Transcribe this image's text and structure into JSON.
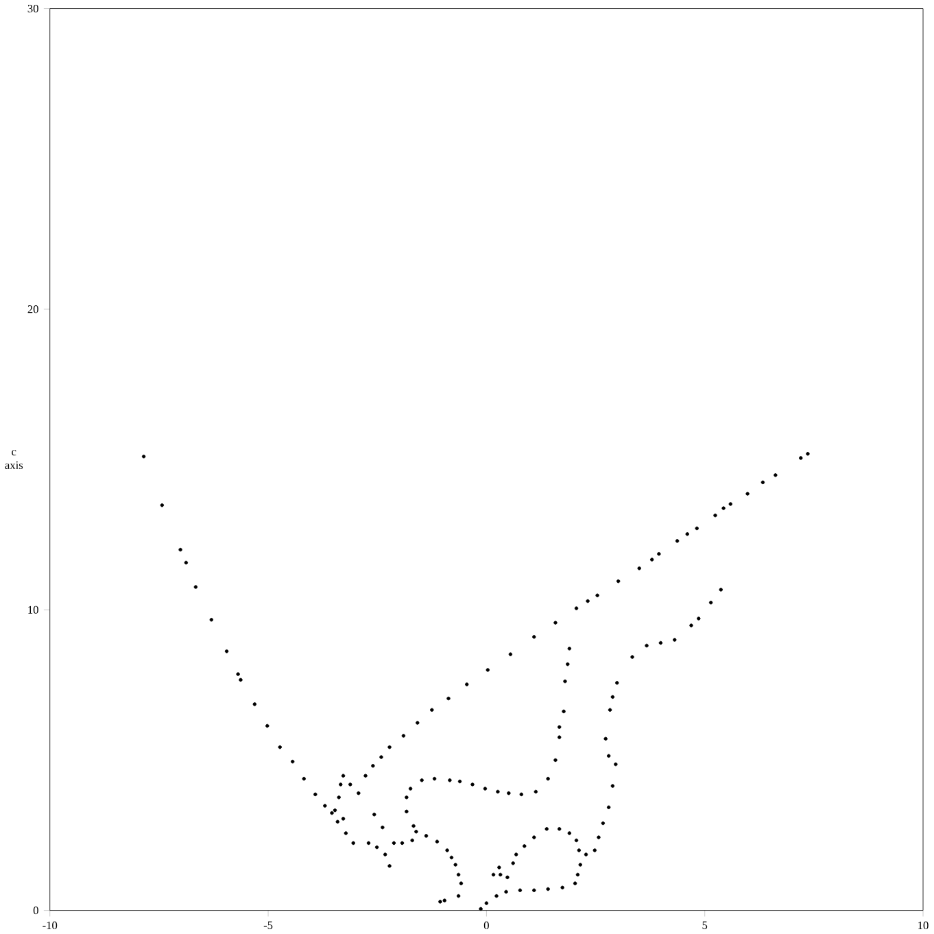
{
  "chart_data": {
    "type": "scatter",
    "ylabel": "c axis",
    "marker": "circle",
    "color": "#000000",
    "xlim": [
      -10,
      10
    ],
    "ylim": [
      0,
      30
    ],
    "xticks": [
      -10,
      -5,
      0,
      5,
      10
    ],
    "yticks": [
      0,
      10,
      20,
      30
    ],
    "x": [
      -7.85,
      -7.43,
      -7.01,
      -6.88,
      -6.66,
      -6.3,
      -5.95,
      -5.69,
      -5.63,
      -5.31,
      -5.02,
      -4.73,
      -4.44,
      -4.18,
      -3.92,
      -3.7,
      -3.54,
      -3.41,
      -2.93,
      -2.77,
      -2.6,
      -2.41,
      -2.22,
      -1.9,
      -1.58,
      -1.25,
      -0.87,
      -0.45,
      0.03,
      0.55,
      1.09,
      1.58,
      2.06,
      2.32,
      2.54,
      3.02,
      3.5,
      3.79,
      3.95,
      4.37,
      4.6,
      4.82,
      5.24,
      5.43,
      5.59,
      5.98,
      6.33,
      6.62,
      7.2,
      7.36,
      -3.47,
      -3.28,
      -3.34,
      -3.12,
      -3.38,
      -3.28,
      -3.22,
      -3.05,
      -2.7,
      -2.51,
      -2.32,
      -2.22,
      -2.12,
      -1.93,
      -1.7,
      -1.61,
      -2.57,
      -2.38,
      -1.38,
      -1.13,
      -0.9,
      -0.8,
      -0.71,
      -0.64,
      -0.58,
      -0.64,
      -0.96,
      -1.06,
      -1.83,
      -1.83,
      -1.74,
      -1.48,
      -1.19,
      -0.84,
      -0.61,
      -0.32,
      -0.03,
      0.26,
      0.51,
      0.8,
      1.13,
      1.41,
      1.58,
      1.67,
      1.67,
      1.77,
      1.8,
      1.86,
      1.9,
      -1.67,
      -0.13,
      0.0,
      0.23,
      0.45,
      0.77,
      1.09,
      1.41,
      1.74,
      2.03,
      2.09,
      2.15,
      2.12,
      2.06,
      1.9,
      1.67,
      1.38,
      1.09,
      0.87,
      0.68,
      0.61,
      0.48,
      0.32,
      0.16,
      0.29,
      2.28,
      2.48,
      2.57,
      2.67,
      2.8,
      2.89,
      2.96,
      2.8,
      2.73,
      2.83,
      2.89,
      2.99,
      3.34,
      3.67,
      3.99,
      4.31,
      4.69,
      4.86,
      5.14,
      5.37
    ],
    "values": [
      15.1,
      13.48,
      12.0,
      11.57,
      10.76,
      9.67,
      8.62,
      7.86,
      7.67,
      6.86,
      6.14,
      5.43,
      4.95,
      4.38,
      3.86,
      3.48,
      3.24,
      2.95,
      3.9,
      4.48,
      4.81,
      5.1,
      5.43,
      5.81,
      6.24,
      6.67,
      7.05,
      7.52,
      8.0,
      8.52,
      9.1,
      9.57,
      10.05,
      10.29,
      10.48,
      10.95,
      11.38,
      11.67,
      11.86,
      12.29,
      12.52,
      12.71,
      13.14,
      13.38,
      13.52,
      13.86,
      14.24,
      14.48,
      15.05,
      15.19,
      3.33,
      4.48,
      4.19,
      4.19,
      3.76,
      3.05,
      2.57,
      2.24,
      2.24,
      2.1,
      1.86,
      1.48,
      2.24,
      2.24,
      2.33,
      2.62,
      3.19,
      2.76,
      2.48,
      2.29,
      2.0,
      1.76,
      1.52,
      1.19,
      0.9,
      0.48,
      0.33,
      0.29,
      3.29,
      3.76,
      4.05,
      4.33,
      4.38,
      4.33,
      4.29,
      4.19,
      4.05,
      3.95,
      3.9,
      3.86,
      3.95,
      4.38,
      5.0,
      5.76,
      6.1,
      6.62,
      7.62,
      8.19,
      8.71,
      2.81,
      0.05,
      0.24,
      0.48,
      0.62,
      0.67,
      0.67,
      0.71,
      0.76,
      0.9,
      1.19,
      1.52,
      2.0,
      2.33,
      2.57,
      2.71,
      2.71,
      2.43,
      2.14,
      1.86,
      1.57,
      1.1,
      1.19,
      1.19,
      1.43,
      1.86,
      2.0,
      2.43,
      2.9,
      3.43,
      4.14,
      4.86,
      5.14,
      5.71,
      6.67,
      7.1,
      7.57,
      8.43,
      8.81,
      8.9,
      9.0,
      9.48,
      9.71,
      10.24,
      10.67
    ]
  }
}
